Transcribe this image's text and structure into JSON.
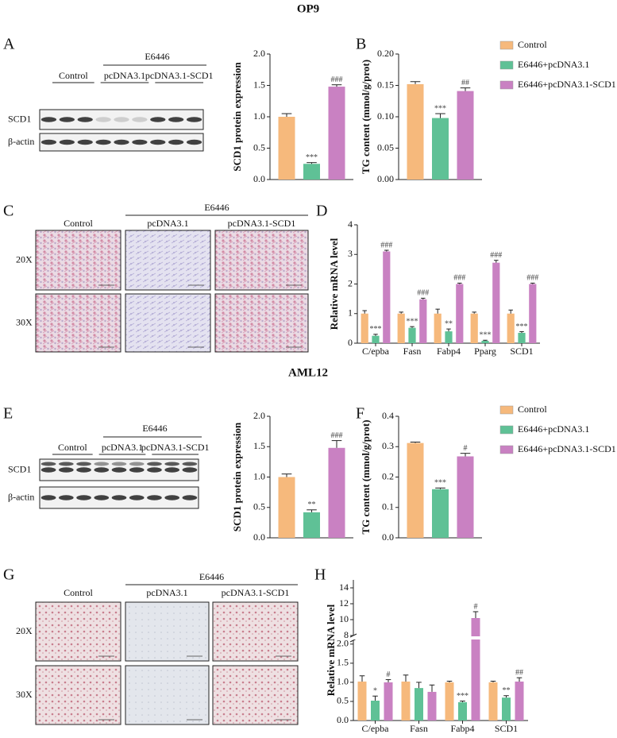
{
  "figure": {
    "sections": [
      "OP9",
      "AML12"
    ],
    "panel_letters": [
      "A",
      "B",
      "C",
      "D",
      "E",
      "F",
      "G",
      "H"
    ]
  },
  "blots": [
    {
      "group": "E6446",
      "lanes": [
        "Control",
        "pcDNA3.1",
        "pcDNA3.1-SCD1"
      ],
      "rows": [
        "SCD1",
        "β-actin"
      ]
    },
    {
      "group": "E6446",
      "lanes": [
        "Control",
        "pcDNA3.1",
        "pcDNA3.1-SCD1"
      ],
      "rows": [
        "SCD1",
        "β-actin"
      ]
    }
  ],
  "stains": [
    {
      "group": "E6446",
      "columns": [
        "Control",
        "pcDNA3.1",
        "pcDNA3.1-SCD1"
      ],
      "rows": [
        "20X",
        "30X"
      ]
    },
    {
      "group": "E6446",
      "columns": [
        "Control",
        "pcDNA3.1",
        "pcDNA3.1-SCD1"
      ],
      "rows": [
        "20X",
        "30X"
      ]
    }
  ],
  "chart_data": [
    {
      "type": "bar",
      "y_label": "SCD1 protein expression",
      "categories": [
        null
      ],
      "ylim": [
        0,
        2.0
      ],
      "yticks": [
        {
          "value": 0,
          "label": "0.0"
        },
        0.5,
        {
          "value": 1,
          "label": "1.0"
        },
        1.5,
        {
          "value": 2,
          "label": "2.0"
        }
      ],
      "series": [
        {
          "color": "#f6b97c",
          "values": [
            1.0
          ],
          "errors": [
            0.05
          ],
          "annotations": [
            null
          ]
        },
        {
          "color": "#5fc196",
          "values": [
            0.25
          ],
          "errors": [
            0.02
          ],
          "annotations": [
            "***"
          ]
        },
        {
          "color": "#c981c2",
          "values": [
            1.48
          ],
          "errors": [
            0.03
          ],
          "annotations": [
            "###"
          ]
        }
      ]
    },
    {
      "type": "bar",
      "y_label": "TG content (mmol/g/prot)",
      "categories": [
        null
      ],
      "ylim": [
        0,
        0.2
      ],
      "yticks": [
        {
          "value": 0,
          "label": "0.00"
        },
        0.05,
        {
          "value": 0.1,
          "label": "0.10"
        },
        0.15,
        {
          "value": 0.2,
          "label": "0.20"
        }
      ],
      "series": [
        {
          "name": "Control",
          "color": "#f6b97c",
          "values": [
            0.152
          ],
          "errors": [
            0.004
          ],
          "annotations": [
            null
          ]
        },
        {
          "name": "E6446+pcDNA3.1",
          "color": "#5fc196",
          "values": [
            0.098
          ],
          "errors": [
            0.007
          ],
          "annotations": [
            "***"
          ]
        },
        {
          "name": "E6446+pcDNA3.1-SCD1",
          "color": "#c981c2",
          "values": [
            0.141
          ],
          "errors": [
            0.005
          ],
          "annotations": [
            "##"
          ]
        }
      ]
    },
    {
      "type": "bar",
      "y_label": "Relative mRNA level",
      "categories": [
        "C/epba",
        "Fasn",
        "Fabp4",
        "Pparg",
        "SCD1"
      ],
      "ylim": [
        0,
        4
      ],
      "yticks": [
        0,
        1,
        2,
        3,
        4
      ],
      "series": [
        {
          "color": "#f6b97c",
          "values": [
            1.0,
            1.0,
            1.0,
            1.0,
            1.0
          ],
          "errors": [
            0.1,
            0.05,
            0.15,
            0.05,
            0.12
          ],
          "annotations": [
            null,
            null,
            null,
            null,
            null
          ]
        },
        {
          "color": "#5fc196",
          "values": [
            0.25,
            0.52,
            0.4,
            0.08,
            0.35
          ],
          "errors": [
            0.05,
            0.04,
            0.08,
            0.02,
            0.04
          ],
          "annotations": [
            "***",
            "***",
            "**",
            "***",
            "***"
          ]
        },
        {
          "color": "#c981c2",
          "values": [
            3.1,
            1.48,
            2.0,
            2.72,
            2.0
          ],
          "errors": [
            0.04,
            0.04,
            0.03,
            0.08,
            0.03
          ],
          "annotations": [
            "###",
            "###",
            "###",
            "###",
            "###"
          ]
        }
      ]
    },
    {
      "type": "bar",
      "y_label": "SCD1 protein expression",
      "categories": [
        null
      ],
      "ylim": [
        0,
        2.0
      ],
      "yticks": [
        {
          "value": 0,
          "label": "0.0"
        },
        0.5,
        {
          "value": 1,
          "label": "1.0"
        },
        1.5,
        {
          "value": 2,
          "label": "2.0"
        }
      ],
      "series": [
        {
          "color": "#f6b97c",
          "values": [
            1.0
          ],
          "errors": [
            0.05
          ],
          "annotations": [
            null
          ]
        },
        {
          "color": "#5fc196",
          "values": [
            0.42
          ],
          "errors": [
            0.04
          ],
          "annotations": [
            "**"
          ]
        },
        {
          "color": "#c981c2",
          "values": [
            1.48
          ],
          "errors": [
            0.12
          ],
          "annotations": [
            "###"
          ]
        }
      ]
    },
    {
      "type": "bar",
      "y_label": "TG content (mmol/g/prot)",
      "categories": [
        null
      ],
      "ylim": [
        0,
        0.4
      ],
      "yticks": [
        {
          "value": 0,
          "label": "0.0"
        },
        0.1,
        0.2,
        0.3,
        0.4
      ],
      "series": [
        {
          "name": "Control",
          "color": "#f6b97c",
          "values": [
            0.312
          ],
          "errors": [
            0.003
          ],
          "annotations": [
            null
          ]
        },
        {
          "name": "E6446+pcDNA3.1",
          "color": "#5fc196",
          "values": [
            0.16
          ],
          "errors": [
            0.004
          ],
          "annotations": [
            "***"
          ]
        },
        {
          "name": "E6446+pcDNA3.1-SCD1",
          "color": "#c981c2",
          "values": [
            0.268
          ],
          "errors": [
            0.01
          ],
          "annotations": [
            "#"
          ]
        }
      ]
    },
    {
      "type": "bar",
      "y_label": "Relative mRNA level",
      "categories": [
        "C/epba",
        "Fasn",
        "Fabp4",
        "SCD1"
      ],
      "ylim_lower": [
        0,
        2.1
      ],
      "yticks_lower": [
        {
          "value": 0,
          "label": "0.0"
        },
        0.5,
        {
          "value": 1,
          "label": "1.0"
        },
        1.5,
        {
          "value": 2,
          "label": "2.0"
        }
      ],
      "ylim_upper": [
        8,
        15
      ],
      "yticks_upper": [
        8,
        10,
        12,
        14
      ],
      "series": [
        {
          "color": "#f6b97c",
          "values": [
            1.02,
            1.02,
            1.0,
            1.0
          ],
          "errors": [
            0.15,
            0.17,
            0.03,
            0.03
          ],
          "annotations": [
            null,
            null,
            null,
            null
          ]
        },
        {
          "color": "#5fc196",
          "values": [
            0.52,
            0.85,
            0.48,
            0.6
          ],
          "errors": [
            0.12,
            0.15,
            0.03,
            0.05
          ],
          "annotations": [
            "*",
            null,
            "***",
            "**"
          ]
        },
        {
          "color": "#c981c2",
          "values": [
            1.0,
            0.75,
            10.2,
            1.02
          ],
          "errors": [
            0.07,
            0.18,
            0.8,
            0.1
          ],
          "annotations": [
            "#",
            null,
            "#",
            "##"
          ]
        }
      ]
    }
  ]
}
